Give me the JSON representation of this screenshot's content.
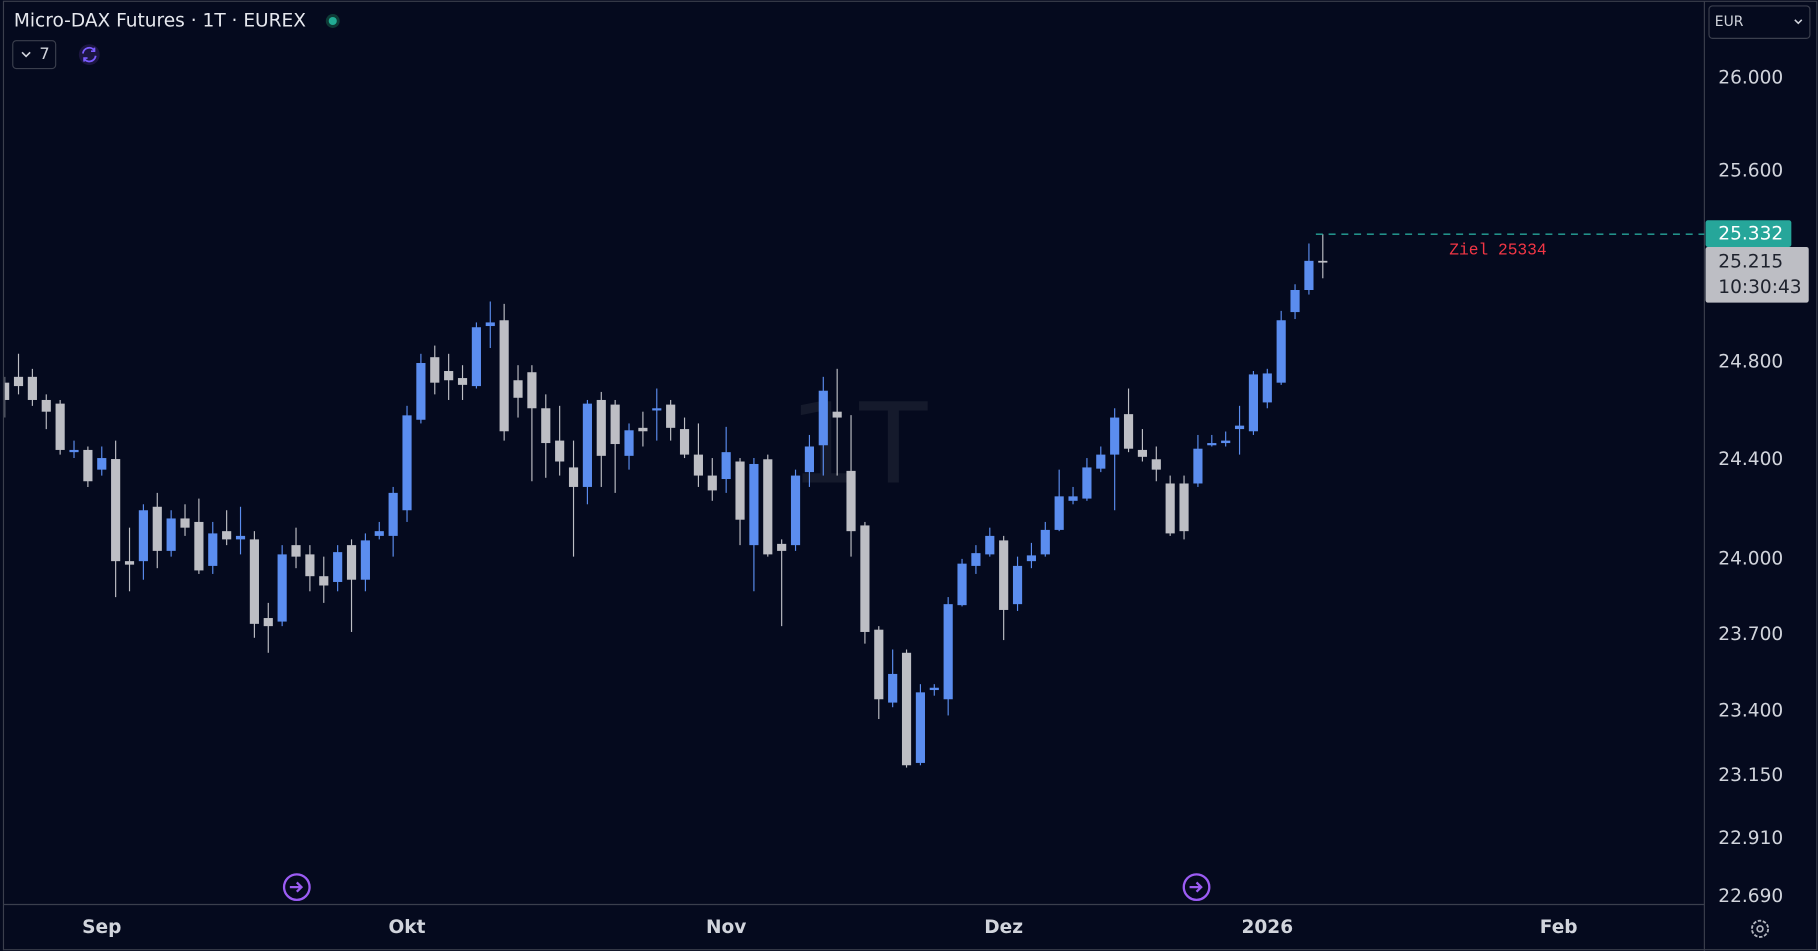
{
  "ui": {
    "indicator_count": 7,
    "currency": "EUR",
    "countdown": "10:30:43",
    "watermark": "1T"
  },
  "chart_data": {
    "type": "candlestick",
    "title": "Micro-DAX Futures · 1T · EUREX",
    "log_scale": true,
    "grid": false,
    "up_color": "#5b8def",
    "down_color": "#bdbec4",
    "xlim": [
      0,
      122.5
    ],
    "xticks": [
      {
        "value": 7,
        "label": "Sep"
      },
      {
        "value": 29,
        "label": "Okt"
      },
      {
        "value": 52,
        "label": "Nov"
      },
      {
        "value": 72,
        "label": "Dez"
      },
      {
        "value": 91,
        "label": "2026"
      },
      {
        "value": 112,
        "label": "Feb"
      }
    ],
    "ylim": [
      22659,
      26338
    ],
    "yticks": [
      {
        "value": 26000,
        "label": "26.000"
      },
      {
        "value": 25600,
        "label": "25.600"
      },
      {
        "value": 24800,
        "label": "24.800"
      },
      {
        "value": 24400,
        "label": "24.400"
      },
      {
        "value": 24000,
        "label": "24.000"
      },
      {
        "value": 23700,
        "label": "23.700"
      },
      {
        "value": 23400,
        "label": "23.400"
      },
      {
        "value": 23150,
        "label": "23.150"
      },
      {
        "value": 22910,
        "label": "22.910"
      },
      {
        "value": 22690,
        "label": "22.690"
      }
    ],
    "open": [
      24714,
      24738,
      24738,
      24643,
      24628,
      24430,
      24439,
      24359,
      24402,
      23991,
      23991,
      24209,
      24032,
      24162,
      24148,
      23972,
      24111,
      24078,
      24078,
      23765,
      23751,
      24055,
      24018,
      23931,
      23908,
      24055,
      23917,
      24092,
      24092,
      24195,
      24562,
      24819,
      24762,
      24733,
      24700,
      24948,
      24972,
      24724,
      24757,
      24609,
      24477,
      24368,
      24289,
      24643,
      24624,
      24415,
      24529,
      24600,
      24624,
      24524,
      24420,
      24335,
      24321,
      24392,
      24055,
      24401,
      24060,
      24055,
      24349,
      24458,
      24595,
      24354,
      24134,
      23719,
      23433,
      23628,
      23199,
      23482,
      23446,
      23816,
      23972,
      24018,
      24074,
      23820,
      23991,
      24018,
      24116,
      24233,
      24242,
      24363,
      24420,
      24585,
      24439,
      24401,
      24303,
      24303,
      24303,
      24458,
      24467,
      24524,
      24515,
      24633,
      24714,
      25006,
      25098,
      25220
    ],
    "high": [
      24738,
      24833,
      24771,
      24666,
      24643,
      24477,
      24453,
      24453,
      24477,
      24125,
      24219,
      24265,
      24195,
      24219,
      24242,
      24148,
      24195,
      24209,
      24111,
      23825,
      24055,
      24125,
      24055,
      24009,
      24055,
      24078,
      24102,
      24148,
      24289,
      24619,
      24833,
      24867,
      24833,
      24786,
      24963,
      25050,
      25040,
      24786,
      24786,
      24666,
      24619,
      24477,
      24643,
      24676,
      24643,
      24547,
      24595,
      24690,
      24643,
      24571,
      24547,
      24406,
      24533,
      24406,
      24406,
      24420,
      24078,
      24359,
      24500,
      24738,
      24771,
      24581,
      24148,
      23733,
      23641,
      23641,
      23505,
      23505,
      23848,
      24000,
      24055,
      24125,
      24092,
      24009,
      24064,
      24148,
      24359,
      24289,
      24406,
      24453,
      24609,
      24690,
      24524,
      24453,
      24335,
      24335,
      24500,
      24500,
      24514,
      24619,
      24762,
      24771,
      25011,
      25122,
      25293,
      25332
    ],
    "low": [
      24571,
      24666,
      24619,
      24524,
      24420,
      24406,
      24289,
      24335,
      23848,
      23871,
      23917,
      23963,
      24009,
      24092,
      23940,
      23940,
      24055,
      24018,
      23687,
      23628,
      23733,
      23963,
      23871,
      23825,
      23871,
      23710,
      23871,
      24078,
      24009,
      24148,
      24547,
      24666,
      24643,
      24643,
      24690,
      24857,
      24477,
      24571,
      24312,
      24326,
      24335,
      24009,
      24219,
      24289,
      24265,
      24359,
      24453,
      24477,
      24477,
      24406,
      24289,
      24233,
      24265,
      24055,
      23871,
      24009,
      23733,
      24032,
      24289,
      24335,
      24335,
      24009,
      23664,
      23369,
      23415,
      23181,
      23190,
      23460,
      23383,
      23811,
      23940,
      24009,
      23678,
      23793,
      23963,
      24009,
      24111,
      24219,
      24233,
      24349,
      24195,
      24430,
      24392,
      24312,
      24092,
      24078,
      24289,
      24453,
      24453,
      24420,
      24500,
      24609,
      24705,
      24977,
      25079,
      25147
    ],
    "close": [
      24643,
      24700,
      24643,
      24595,
      24439,
      24439,
      24312,
      24406,
      23991,
      23977,
      24195,
      24032,
      24162,
      24125,
      23954,
      24102,
      24078,
      24092,
      23742,
      23733,
      24018,
      24009,
      23931,
      23894,
      24027,
      23917,
      24074,
      24111,
      24265,
      24580,
      24795,
      24714,
      24724,
      24705,
      24943,
      24963,
      24515,
      24652,
      24609,
      24467,
      24392,
      24289,
      24628,
      24415,
      24463,
      24519,
      24515,
      24609,
      24529,
      24420,
      24335,
      24275,
      24430,
      24157,
      24382,
      24018,
      24032,
      24335,
      24453,
      24681,
      24571,
      24111,
      23710,
      23446,
      23545,
      23190,
      23473,
      23491,
      23820,
      23981,
      24023,
      24092,
      23797,
      23972,
      24014,
      24116,
      24251,
      24251,
      24368,
      24420,
      24571,
      24444,
      24411,
      24359,
      24102,
      24111,
      24444,
      24467,
      24477,
      24538,
      24748,
      24752,
      24972,
      25098,
      25220,
      25215
    ],
    "high_line": {
      "value": 25332,
      "label": "25.332",
      "color": "#26a69a"
    },
    "last_price": {
      "value": 25215,
      "label": "25.215"
    },
    "annotation": "Ziel 25334"
  }
}
